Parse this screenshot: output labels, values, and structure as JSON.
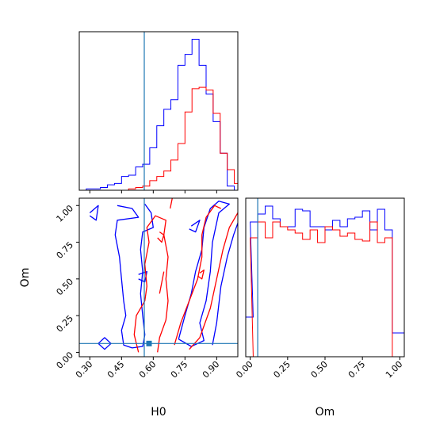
{
  "chart_data": [
    {
      "type": "histogram",
      "panel": "H0 marginal",
      "xlim": [
        0.25,
        1.0
      ],
      "truth": 0.58,
      "series": [
        {
          "name": "",
          "color": "#0000ff",
          "bin_width": 0.0333,
          "bin_starts": [
            0.25,
            0.2833,
            0.3167,
            0.35,
            0.3833,
            0.4167,
            0.45,
            0.4833,
            0.5167,
            0.55,
            0.5833,
            0.6167,
            0.65,
            0.6833,
            0.7167,
            0.75,
            0.7833,
            0.8167,
            0.85,
            0.8833,
            0.9167,
            0.95,
            0.9833
          ],
          "values": [
            0,
            1,
            1,
            2,
            4,
            5,
            10,
            11,
            17,
            19,
            31,
            47,
            59,
            66,
            91,
            99,
            110,
            91,
            70,
            50,
            27,
            3,
            0
          ]
        },
        {
          "name": "",
          "color": "#ff0000",
          "bin_width": 0.0333,
          "bin_starts": [
            0.25,
            0.2833,
            0.3167,
            0.35,
            0.3833,
            0.4167,
            0.45,
            0.4833,
            0.5167,
            0.55,
            0.5833,
            0.6167,
            0.65,
            0.6833,
            0.7167,
            0.75,
            0.7833,
            0.8167,
            0.85,
            0.8833,
            0.9167,
            0.95,
            0.9833
          ],
          "values": [
            0,
            0,
            0,
            0,
            0,
            0,
            0,
            1,
            2,
            3,
            7,
            10,
            14,
            22,
            34,
            57,
            74,
            75,
            73,
            56,
            27,
            15,
            5
          ]
        }
      ]
    },
    {
      "type": "contour",
      "panel": "Om vs H0",
      "xlabel": "H0",
      "ylabel": "Om",
      "xlim": [
        0.25,
        1.0
      ],
      "ylim": [
        -0.03,
        1.05
      ],
      "xticks": [
        "0.30",
        "0.45",
        "0.60",
        "0.75",
        "0.90"
      ],
      "xtick_values": [
        0.3,
        0.45,
        0.6,
        0.75,
        0.9
      ],
      "yticks": [
        "0.00",
        "0.25",
        "0.50",
        "0.75",
        "1.00"
      ],
      "ytick_values": [
        0.0,
        0.25,
        0.5,
        0.75,
        1.0
      ],
      "truth": {
        "x": 0.58,
        "y": 0.06
      },
      "series": [
        {
          "name": "",
          "color": "#0000ff",
          "contours": [
            [
              [
                0.43,
                1.0
              ],
              [
                0.5,
                0.98
              ],
              [
                0.53,
                0.92
              ],
              [
                0.43,
                0.9
              ],
              [
                0.42,
                0.8
              ],
              [
                0.44,
                0.65
              ],
              [
                0.45,
                0.5
              ],
              [
                0.46,
                0.35
              ],
              [
                0.47,
                0.25
              ],
              [
                0.45,
                0.15
              ],
              [
                0.46,
                0.05
              ],
              [
                0.5,
                0.03
              ],
              [
                0.55,
                0.04
              ],
              [
                0.56,
                0.12
              ],
              [
                0.55,
                0.25
              ],
              [
                0.54,
                0.4
              ],
              [
                0.55,
                0.55
              ],
              [
                0.54,
                0.7
              ],
              [
                0.55,
                0.82
              ],
              [
                0.6,
                0.85
              ],
              [
                0.59,
                0.95
              ],
              [
                0.56,
                1.01
              ]
            ],
            [
              [
                0.3,
                0.95
              ],
              [
                0.34,
                1.0
              ],
              [
                0.33,
                0.9
              ],
              [
                0.3,
                0.93
              ]
            ],
            [
              [
                0.34,
                0.06
              ],
              [
                0.37,
                0.1
              ],
              [
                0.4,
                0.06
              ],
              [
                0.37,
                0.02
              ],
              [
                0.34,
                0.06
              ]
            ],
            [
              [
                0.53,
                0.53
              ],
              [
                0.57,
                0.55
              ],
              [
                0.56,
                0.48
              ],
              [
                0.53,
                0.5
              ]
            ],
            [
              [
                0.72,
                0.09
              ],
              [
                0.78,
                0.04
              ],
              [
                0.84,
                0.08
              ],
              [
                0.82,
                0.2
              ],
              [
                0.85,
                0.35
              ],
              [
                0.87,
                0.55
              ],
              [
                0.88,
                0.75
              ],
              [
                0.91,
                0.95
              ],
              [
                0.96,
                1.01
              ],
              [
                0.91,
                1.03
              ],
              [
                0.87,
                0.98
              ],
              [
                0.84,
                0.85
              ],
              [
                0.83,
                0.7
              ],
              [
                0.8,
                0.55
              ],
              [
                0.78,
                0.4
              ],
              [
                0.75,
                0.25
              ],
              [
                0.72,
                0.09
              ]
            ],
            [
              [
                0.78,
                0.86
              ],
              [
                0.82,
                0.9
              ],
              [
                0.8,
                0.82
              ],
              [
                0.77,
                0.84
              ]
            ],
            [
              [
                0.88,
                0.05
              ],
              [
                0.9,
                0.2
              ],
              [
                0.92,
                0.45
              ],
              [
                0.95,
                0.65
              ],
              [
                0.98,
                0.8
              ],
              [
                1.0,
                0.88
              ]
            ]
          ]
        },
        {
          "name": "",
          "color": "#ff0000",
          "contours": [
            [
              [
                0.53,
                0.0
              ],
              [
                0.51,
                0.12
              ],
              [
                0.52,
                0.25
              ],
              [
                0.56,
                0.35
              ],
              [
                0.57,
                0.45
              ],
              [
                0.56,
                0.6
              ],
              [
                0.58,
                0.75
              ],
              [
                0.57,
                0.85
              ],
              [
                0.61,
                0.93
              ],
              [
                0.66,
                0.9
              ],
              [
                0.65,
                0.8
              ],
              [
                0.67,
                0.65
              ],
              [
                0.66,
                0.5
              ],
              [
                0.67,
                0.35
              ],
              [
                0.66,
                0.22
              ],
              [
                0.63,
                0.1
              ],
              [
                0.62,
                0.0
              ]
            ],
            [
              [
                0.68,
                0.98
              ],
              [
                0.69,
                1.05
              ]
            ],
            [
              [
                0.63,
                0.82
              ],
              [
                0.65,
                0.8
              ],
              [
                0.64,
                0.75
              ],
              [
                0.62,
                0.78
              ]
            ],
            [
              [
                0.63,
                0.4
              ],
              [
                0.65,
                0.55
              ]
            ],
            [
              [
                0.7,
                0.05
              ],
              [
                0.73,
                0.2
              ],
              [
                0.77,
                0.35
              ],
              [
                0.81,
                0.5
              ],
              [
                0.83,
                0.65
              ],
              [
                0.83,
                0.8
              ],
              [
                0.85,
                0.92
              ],
              [
                0.89,
                1.0
              ],
              [
                0.92,
                0.98
              ]
            ],
            [
              [
                0.77,
                0.02
              ],
              [
                0.82,
                0.1
              ],
              [
                0.87,
                0.3
              ],
              [
                0.9,
                0.5
              ],
              [
                0.93,
                0.7
              ],
              [
                0.96,
                0.85
              ],
              [
                1.0,
                0.95
              ]
            ],
            [
              [
                0.82,
                0.54
              ],
              [
                0.84,
                0.56
              ],
              [
                0.83,
                0.5
              ],
              [
                0.81,
                0.52
              ]
            ]
          ]
        }
      ]
    },
    {
      "type": "histogram",
      "panel": "Om marginal",
      "xlabel": "Om",
      "xlim": [
        -0.03,
        1.03
      ],
      "xticks": [
        "0.00",
        "0.25",
        "0.50",
        "0.75",
        "1.00"
      ],
      "xtick_values": [
        0.0,
        0.25,
        0.5,
        0.75,
        1.0
      ],
      "truth": 0.05,
      "series": [
        {
          "name": "",
          "color": "#0000ff",
          "bin_width": 0.05,
          "bin_starts": [
            -0.03,
            0.0,
            0.05,
            0.1,
            0.15,
            0.2,
            0.25,
            0.3,
            0.35,
            0.4,
            0.45,
            0.5,
            0.55,
            0.6,
            0.65,
            0.7,
            0.75,
            0.8,
            0.85,
            0.9,
            0.95,
            1.0
          ],
          "values": [
            0.25,
            0.85,
            0.9,
            0.95,
            0.87,
            0.82,
            0.82,
            0.93,
            0.92,
            0.82,
            0.82,
            0.8,
            0.86,
            0.82,
            0.87,
            0.88,
            0.92,
            0.8,
            0.93,
            0.8,
            0.15,
            0.15
          ]
        },
        {
          "name": "",
          "color": "#ff0000",
          "bin_width": 0.05,
          "bin_starts": [
            -0.03,
            0.0,
            0.05,
            0.1,
            0.15,
            0.2,
            0.25,
            0.3,
            0.35,
            0.4,
            0.45,
            0.5,
            0.55,
            0.6,
            0.65,
            0.7,
            0.75,
            0.8,
            0.85,
            0.9,
            0.95,
            1.0
          ],
          "values": [
            0.0,
            0.75,
            0.85,
            0.75,
            0.85,
            0.82,
            0.8,
            0.78,
            0.74,
            0.8,
            0.72,
            0.82,
            0.8,
            0.76,
            0.78,
            0.74,
            0.73,
            0.85,
            0.72,
            0.75,
            0.0,
            0.0
          ]
        }
      ]
    }
  ]
}
